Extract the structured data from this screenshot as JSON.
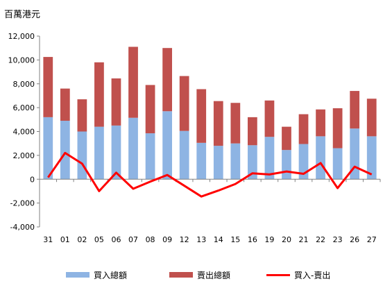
{
  "chart_data": {
    "type": "bar",
    "ylabel": "百萬港元",
    "ylim": [
      -4000,
      12000
    ],
    "yticks": [
      -4000,
      -2000,
      0,
      2000,
      4000,
      6000,
      8000,
      10000,
      12000
    ],
    "ytick_labels": [
      "-4,000",
      "-2,000",
      "0",
      "2,000",
      "4,000",
      "6,000",
      "8,000",
      "10,000",
      "12,000"
    ],
    "categories": [
      "31",
      "01",
      "02",
      "05",
      "06",
      "07",
      "08",
      "09",
      "12",
      "13",
      "14",
      "15",
      "16",
      "19",
      "20",
      "21",
      "22",
      "23",
      "26",
      "27"
    ],
    "series": [
      {
        "name": "買入總額",
        "kind": "stacked-bar",
        "color": "#8EB4E3",
        "values": [
          5200,
          4900,
          4000,
          4400,
          4500,
          5150,
          3850,
          5700,
          4050,
          3050,
          2800,
          3000,
          2850,
          3550,
          2450,
          2950,
          3600,
          2600,
          4250,
          3600
        ]
      },
      {
        "name": "賣出總額",
        "kind": "stacked-bar",
        "color": "#C0504D",
        "values": [
          5050,
          2700,
          2700,
          5400,
          3950,
          5950,
          4050,
          5300,
          4600,
          4500,
          3750,
          3400,
          2350,
          3050,
          1950,
          2500,
          2250,
          3350,
          3150,
          3150
        ]
      },
      {
        "name": "買入-賣出",
        "kind": "line",
        "color": "#FF0000",
        "values": [
          150,
          2200,
          1300,
          -1000,
          550,
          -800,
          -200,
          350,
          -550,
          -1450,
          -950,
          -400,
          500,
          400,
          650,
          450,
          1350,
          -750,
          1050,
          400
        ]
      }
    ]
  }
}
